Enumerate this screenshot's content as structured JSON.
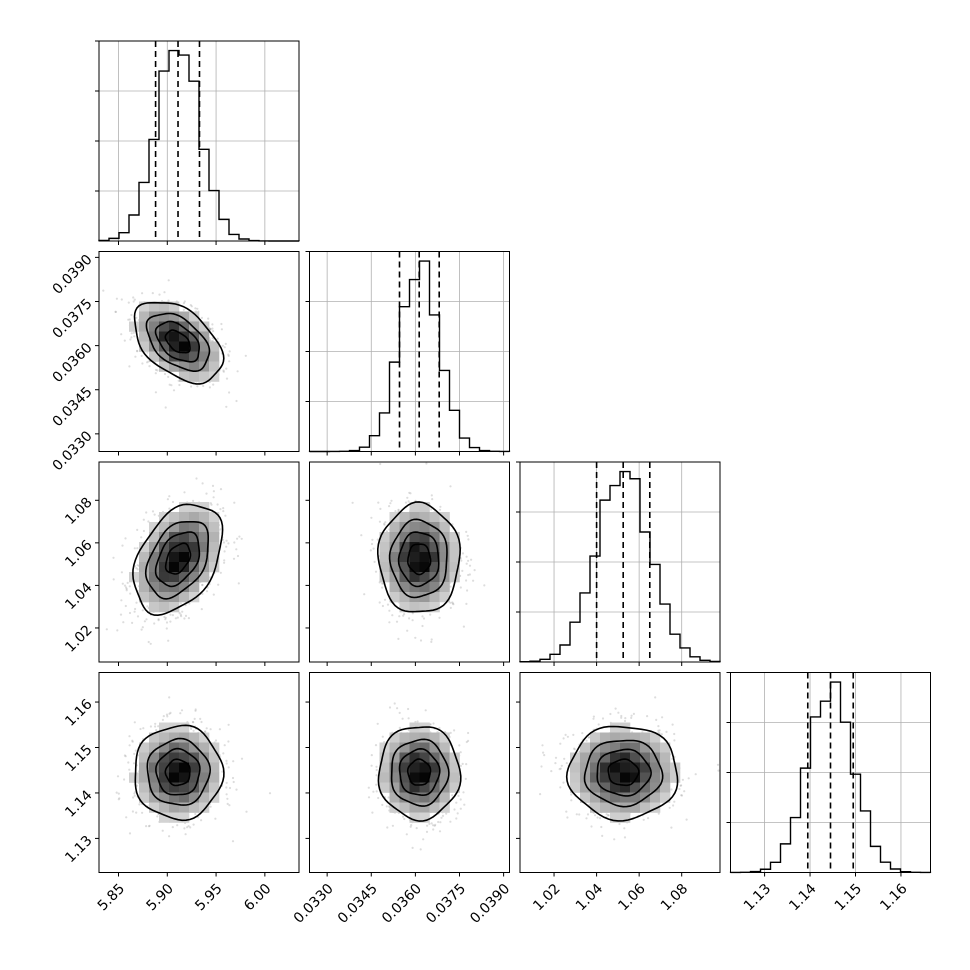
{
  "chart_data": {
    "type": "corner",
    "grid": true,
    "parameters": [
      {
        "index": 0,
        "range": [
          5.83,
          6.035
        ],
        "ticks": [
          5.85,
          5.9,
          5.95,
          6.0
        ],
        "tick_labels": [
          "5.85",
          "5.90",
          "5.95",
          "6.00"
        ],
        "median": 5.911,
        "q16": 5.888,
        "q84": 5.933,
        "sigma": 0.022
      },
      {
        "index": 1,
        "range": [
          0.0324,
          0.0392
        ],
        "ticks": [
          0.033,
          0.0345,
          0.036,
          0.0375,
          0.039
        ],
        "tick_labels": [
          "0.0330",
          "0.0345",
          "0.0360",
          "0.0375",
          "0.0390"
        ],
        "median": 0.03613,
        "q16": 0.03546,
        "q84": 0.03681,
        "sigma": 0.00067
      },
      {
        "index": 2,
        "range": [
          1.004,
          1.098
        ],
        "ticks": [
          1.02,
          1.04,
          1.06,
          1.08
        ],
        "tick_labels": [
          "1.02",
          "1.04",
          "1.06",
          "1.08"
        ],
        "median": 1.0525,
        "q16": 1.04,
        "q84": 1.065,
        "sigma": 0.0125
      },
      {
        "index": 3,
        "range": [
          1.1225,
          1.1665
        ],
        "ticks": [
          1.13,
          1.14,
          1.15,
          1.16
        ],
        "tick_labels": [
          "1.13",
          "1.14",
          "1.15",
          "1.16"
        ],
        "median": 1.1445,
        "q16": 1.1395,
        "q84": 1.1495,
        "sigma": 0.005
      }
    ],
    "correlations": {
      "1_0": -0.45,
      "2_0": 0.38,
      "2_1": 0.0,
      "3_0": 0.0,
      "3_1": 0.0,
      "3_2": 0.0
    }
  }
}
